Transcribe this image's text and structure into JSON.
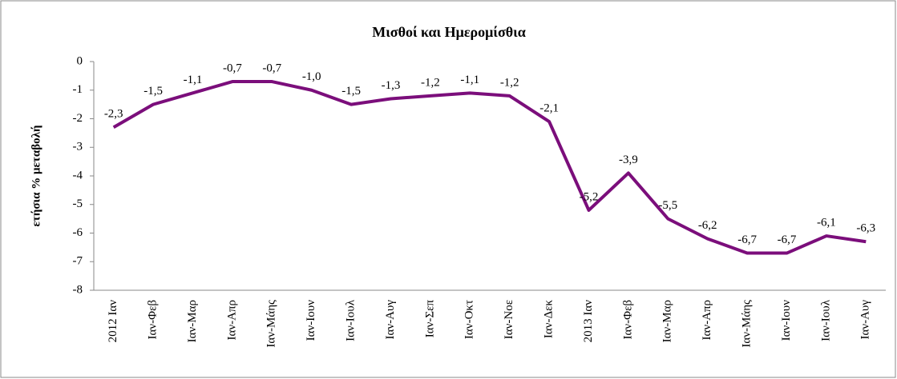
{
  "chart_data": {
    "type": "line",
    "title": "Μισθοί και Ημερομίσθια",
    "y_label": "ετήσια % μεταβολή",
    "categories": [
      "2012 Ιαν",
      "Ιαν-Φεβ",
      "Ιαν-Μαρ",
      "Ιαν-Απρ",
      "Ιαν-Μάης",
      "Ιαν-Ιουν",
      "Ιαν-Ιουλ",
      "Ιαν-Αυγ",
      "Ιαν-Σεπ",
      "Ιαν-Οκτ",
      "Ιαν-Νοε",
      "Ιαν-Δεκ",
      "2013 Ιαν",
      "Ιαν-Φεβ",
      "Ιαν-Μαρ",
      "Ιαν-Απρ",
      "Ιαν-Μάης",
      "Ιαν-Ιουν",
      "Ιαν-Ιουλ",
      "Ιαν-Αυγ"
    ],
    "values": [
      -2.3,
      -1.5,
      -1.1,
      -0.7,
      -0.7,
      -1.0,
      -1.5,
      -1.3,
      -1.2,
      -1.1,
      -1.2,
      -2.1,
      -5.2,
      -3.9,
      -5.5,
      -6.2,
      -6.7,
      -6.7,
      -6.1,
      -6.3
    ],
    "value_labels": [
      "-2,3",
      "-1,5",
      "-1,1",
      "-0,7",
      "-0,7",
      "-1,0",
      "-1,5",
      "-1,3",
      "-1,2",
      "-1,1",
      "-1,2",
      "-2,1",
      "-5,2",
      "-3,9",
      "-5,5",
      "-6,2",
      "-6,7",
      "-6,7",
      "-6,1",
      "-6,3"
    ],
    "color": "#7b0e7b",
    "ylim": [
      -8,
      0
    ],
    "yticks": [
      0,
      -1,
      -2,
      -3,
      -4,
      -5,
      -6,
      -7,
      -8
    ]
  }
}
